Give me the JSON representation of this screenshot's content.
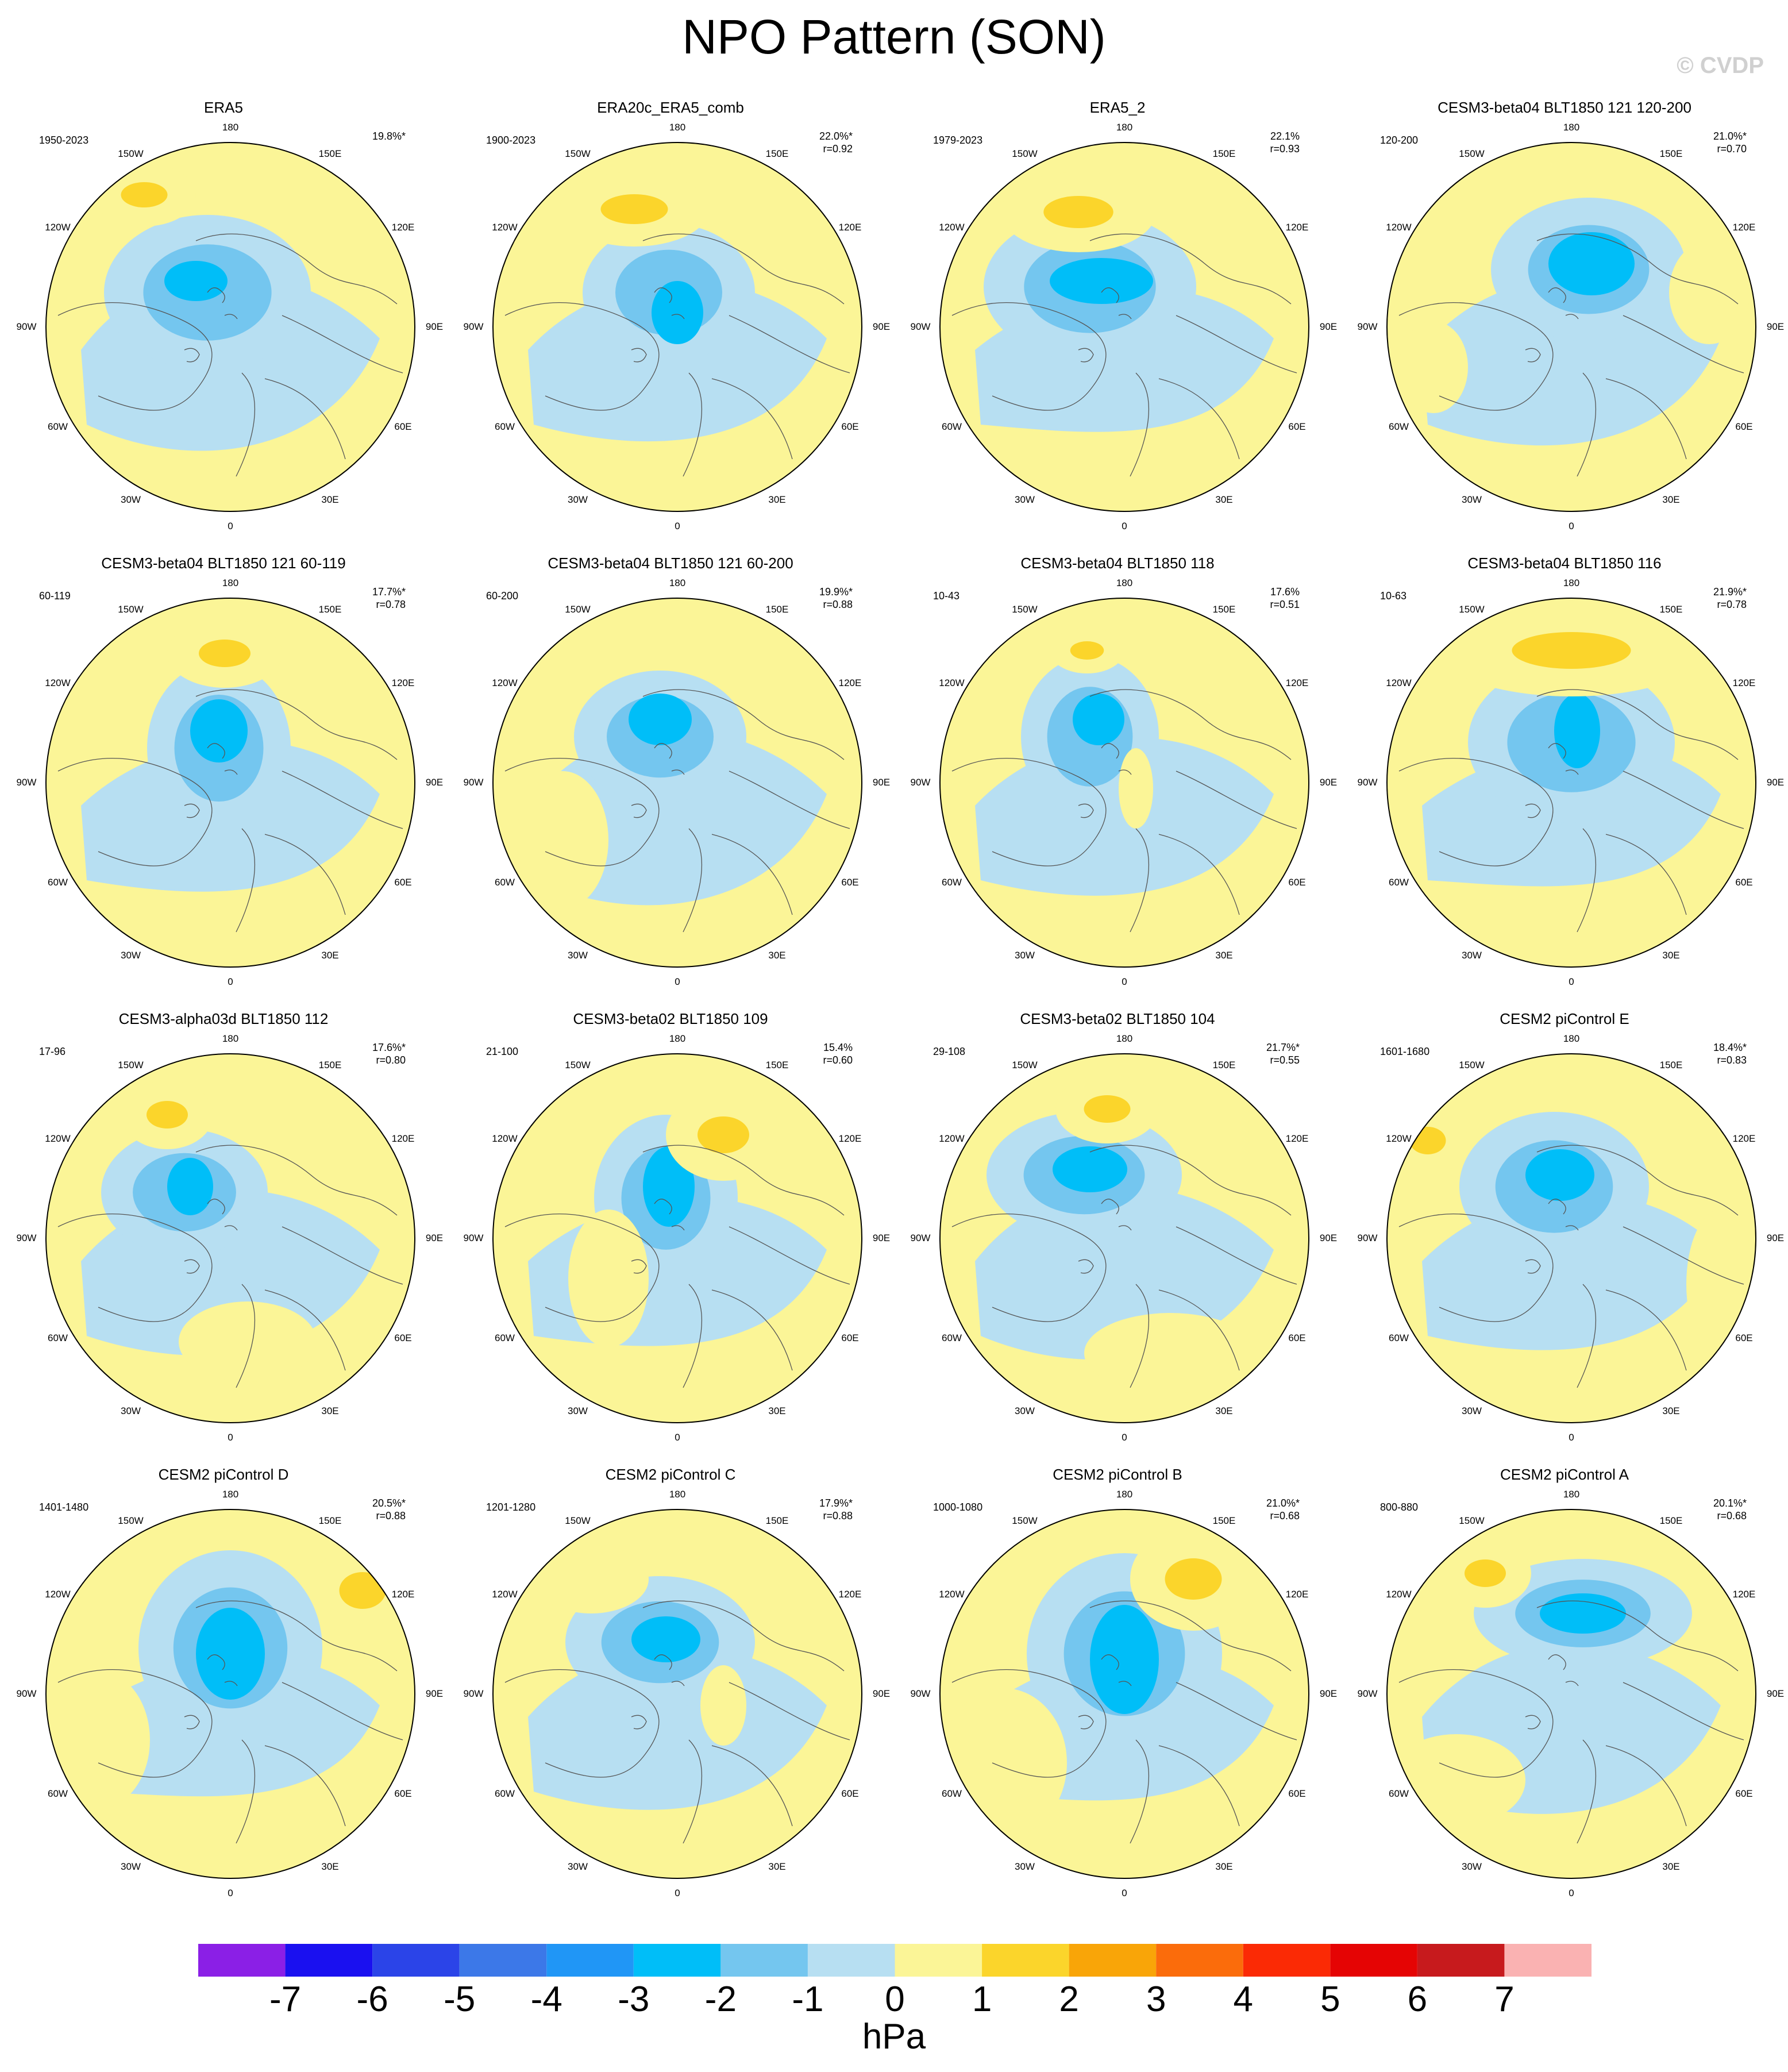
{
  "title": "NPO Pattern (SON)",
  "watermark": "© CVDP",
  "longitude_labels": [
    "180",
    "150E",
    "120E",
    "90E",
    "60E",
    "30E",
    "0",
    "30W",
    "60W",
    "90W",
    "120W",
    "150W"
  ],
  "panels": [
    {
      "title": "ERA5",
      "period": "1950-2023",
      "pct": "19.8%*",
      "r": ""
    },
    {
      "title": "ERA20c_ERA5_comb",
      "period": "1900-2023",
      "pct": "22.0%*",
      "r": "r=0.92"
    },
    {
      "title": "ERA5_2",
      "period": "1979-2023",
      "pct": "22.1%",
      "r": "r=0.93"
    },
    {
      "title": "CESM3-beta04 BLT1850 121 120-200",
      "period": "120-200",
      "pct": "21.0%*",
      "r": "r=0.70"
    },
    {
      "title": "CESM3-beta04 BLT1850 121 60-119",
      "period": "60-119",
      "pct": "17.7%*",
      "r": "r=0.78"
    },
    {
      "title": "CESM3-beta04 BLT1850 121 60-200",
      "period": "60-200",
      "pct": "19.9%*",
      "r": "r=0.88"
    },
    {
      "title": "CESM3-beta04 BLT1850 118",
      "period": "10-43",
      "pct": "17.6%",
      "r": "r=0.51"
    },
    {
      "title": "CESM3-beta04 BLT1850 116",
      "period": "10-63",
      "pct": "21.9%*",
      "r": "r=0.78"
    },
    {
      "title": "CESM3-alpha03d BLT1850 112",
      "period": "17-96",
      "pct": "17.6%*",
      "r": "r=0.80"
    },
    {
      "title": "CESM3-beta02 BLT1850 109",
      "period": "21-100",
      "pct": "15.4%",
      "r": "r=0.60"
    },
    {
      "title": "CESM3-beta02 BLT1850 104",
      "period": "29-108",
      "pct": "21.7%*",
      "r": "r=0.55"
    },
    {
      "title": "CESM2 piControl E",
      "period": "1601-1680",
      "pct": "18.4%*",
      "r": "r=0.83"
    },
    {
      "title": "CESM2 piControl D",
      "period": "1401-1480",
      "pct": "20.5%*",
      "r": "r=0.88"
    },
    {
      "title": "CESM2 piControl C",
      "period": "1201-1280",
      "pct": "17.9%*",
      "r": "r=0.88"
    },
    {
      "title": "CESM2 piControl B",
      "period": "1000-1080",
      "pct": "21.0%*",
      "r": "r=0.68"
    },
    {
      "title": "CESM2 piControl A",
      "period": "800-880",
      "pct": "20.1%*",
      "r": "r=0.68"
    }
  ],
  "colorbar": {
    "labels": [
      "-7",
      "-6",
      "-5",
      "-4",
      "-3",
      "-2",
      "-1",
      "0",
      "1",
      "2",
      "3",
      "4",
      "5",
      "6",
      "7"
    ],
    "colors": [
      "#8b1fe6",
      "#1a10f0",
      "#2b44e8",
      "#3c78e8",
      "#2096f6",
      "#00bef8",
      "#74c6ef",
      "#b7dff2",
      "#fbf597",
      "#fbd52b",
      "#f9a508",
      "#fb6c0b",
      "#fb2a05",
      "#e50404",
      "#c71a1d",
      "#fab2b2"
    ],
    "units": "hPa"
  },
  "fill_colors": {
    "negative_weak": "#b7dff2",
    "negative_mid": "#74c6ef",
    "negative_strong": "#00bef8",
    "positive_weak": "#fbf597",
    "positive_mid": "#fbd52b"
  }
}
